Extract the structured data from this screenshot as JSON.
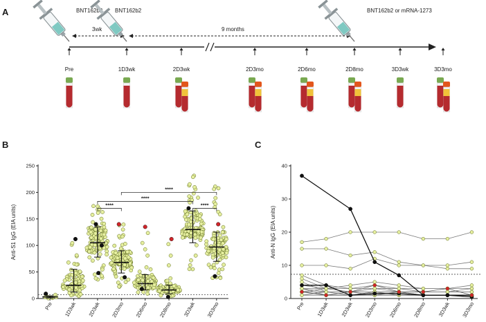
{
  "panels": {
    "a": "A",
    "b": "B",
    "c": "C"
  },
  "timeline": {
    "vaccines": [
      "BNT162b2",
      "BNT162b2",
      "BNT162b2 or mRNA-1273"
    ],
    "intervals": [
      "3wk",
      "9 months"
    ],
    "timepoints": [
      "Pre",
      "1D3wk",
      "2D3wk",
      "2D3mo",
      "2D6mo",
      "2D8mo",
      "3D3wk",
      "3D3mo"
    ],
    "tube_counts": [
      1,
      1,
      2,
      2,
      2,
      2,
      1,
      2
    ]
  },
  "colors": {
    "normal": "#e6efa0",
    "normal_edge": "#5c6a1c",
    "highlight_red": "#d0252a",
    "highlight_black": "#111111",
    "syringe_liquid": "#7fc9c2",
    "tube_blood": "#b52b2f",
    "tube_cap_green": "#79a951",
    "tube_cap_orange": "#e2561c",
    "tube_gel": "#f1c23a"
  },
  "chart_data": [
    {
      "type": "scatter",
      "panel": "B",
      "ylabel": "Anti-S1 IgG (EIA units)",
      "categories": [
        "Pre",
        "1D3wk",
        "2D3wk",
        "2D3mo",
        "2D6mo",
        "2D8mo",
        "3D3wk",
        "3D3mo"
      ],
      "ylim": [
        0,
        250
      ],
      "yticks": [
        0,
        50,
        100,
        150,
        200,
        250
      ],
      "threshold": 7,
      "groups": [
        {
          "median": 3,
          "q1": 1,
          "q3": 5,
          "min": 0,
          "max": 10,
          "n": 10
        },
        {
          "median": 25,
          "q1": 12,
          "q3": 55,
          "min": 3,
          "max": 112,
          "n": 95
        },
        {
          "median": 105,
          "q1": 78,
          "q3": 135,
          "min": 30,
          "max": 175,
          "n": 130
        },
        {
          "median": 68,
          "q1": 48,
          "q3": 90,
          "min": 22,
          "max": 140,
          "n": 120
        },
        {
          "median": 28,
          "q1": 16,
          "q3": 45,
          "min": 5,
          "max": 135,
          "n": 95
        },
        {
          "median": 16,
          "q1": 9,
          "q3": 25,
          "min": 2,
          "max": 112,
          "n": 85
        },
        {
          "median": 130,
          "q1": 105,
          "q3": 165,
          "min": 55,
          "max": 232,
          "n": 130
        },
        {
          "median": 97,
          "q1": 70,
          "q3": 125,
          "min": 35,
          "max": 220,
          "n": 120
        }
      ],
      "highlights": [
        {
          "group": 0,
          "value": 9,
          "color": "black"
        },
        {
          "group": 1,
          "value": 112,
          "color": "black"
        },
        {
          "group": 2,
          "value": 140,
          "color": "black"
        },
        {
          "group": 2,
          "value": 100,
          "color": "black"
        },
        {
          "group": 2,
          "value": 48,
          "color": "black"
        },
        {
          "group": 3,
          "value": 140,
          "color": "red"
        },
        {
          "group": 3,
          "value": 40,
          "color": "black"
        },
        {
          "group": 4,
          "value": 135,
          "color": "red"
        },
        {
          "group": 4,
          "value": 18,
          "color": "black"
        },
        {
          "group": 5,
          "value": 112,
          "color": "red"
        },
        {
          "group": 5,
          "value": 3,
          "color": "black"
        },
        {
          "group": 6,
          "value": 170,
          "color": "black"
        },
        {
          "group": 7,
          "value": 140,
          "color": "red"
        },
        {
          "group": 7,
          "value": 42,
          "color": "black"
        }
      ],
      "significance": [
        {
          "from": 2,
          "to": 3,
          "label": "****",
          "y": 170
        },
        {
          "from": 2,
          "to": 6,
          "label": "****",
          "y": 183
        },
        {
          "from": 3,
          "to": 7,
          "label": "****",
          "y": 200
        },
        {
          "from": 6,
          "to": 7,
          "label": "****",
          "y": 170
        }
      ]
    },
    {
      "type": "line",
      "panel": "C",
      "ylabel": "Anti-N IgG (EIA units)",
      "categories": [
        "Pre",
        "1D3wk",
        "2D3wk",
        "2D3mo",
        "2D6mo",
        "2D8mo",
        "3D3wk",
        "3D3mo"
      ],
      "ylim": [
        0,
        40
      ],
      "yticks": [
        0,
        10,
        20,
        30,
        40
      ],
      "threshold": 7.3,
      "series": [
        {
          "values": [
            37,
            null,
            27,
            11,
            7,
            1,
            1,
            1
          ],
          "color": "black"
        },
        {
          "values": [
            4,
            4,
            1,
            1.5,
            1.5,
            1,
            1,
            0.5
          ],
          "color": "black"
        },
        {
          "values": [
            17,
            18,
            20,
            20,
            20,
            18,
            18,
            20
          ],
          "color": "normal"
        },
        {
          "values": [
            15,
            15,
            13,
            14,
            11,
            10,
            10,
            11
          ],
          "color": "normal"
        },
        {
          "values": [
            10,
            10,
            9,
            12,
            10,
            10,
            9,
            9
          ],
          "color": "normal"
        },
        {
          "values": [
            7,
            4,
            3,
            3,
            2,
            2,
            2,
            2
          ],
          "color": "normal"
        },
        {
          "values": [
            6,
            3,
            4,
            5,
            4,
            3,
            3,
            4
          ],
          "color": "normal"
        },
        {
          "values": [
            5,
            2,
            2,
            3,
            3,
            2,
            2,
            3
          ],
          "color": "normal"
        },
        {
          "values": [
            4,
            3,
            2,
            2,
            2,
            1,
            1,
            1
          ],
          "color": "normal"
        },
        {
          "values": [
            3,
            1,
            1,
            2,
            2,
            1,
            1,
            1
          ],
          "color": "normal"
        },
        {
          "values": [
            3,
            3,
            3,
            4,
            3,
            3,
            3,
            3
          ],
          "color": "normal"
        },
        {
          "values": [
            2,
            2,
            2,
            2,
            2,
            2,
            2,
            2
          ],
          "color": "normal"
        },
        {
          "values": [
            2,
            1,
            1,
            1,
            1,
            1,
            1,
            1
          ],
          "color": "normal"
        },
        {
          "values": [
            1,
            1,
            1,
            1,
            1,
            1,
            1,
            1
          ],
          "color": "normal"
        },
        {
          "values": [
            3,
            2,
            1,
            2,
            1,
            1,
            1,
            1
          ],
          "color": "normal"
        },
        {
          "values": [
            2,
            3,
            2,
            3,
            3,
            2,
            2,
            2
          ],
          "color": "normal"
        },
        {
          "values": [
            1,
            2,
            2,
            1,
            2,
            1,
            1,
            0.5
          ],
          "color": "normal"
        },
        {
          "values": [
            2,
            1,
            2,
            4,
            2,
            2,
            3,
            1
          ],
          "color": "red"
        }
      ]
    }
  ]
}
